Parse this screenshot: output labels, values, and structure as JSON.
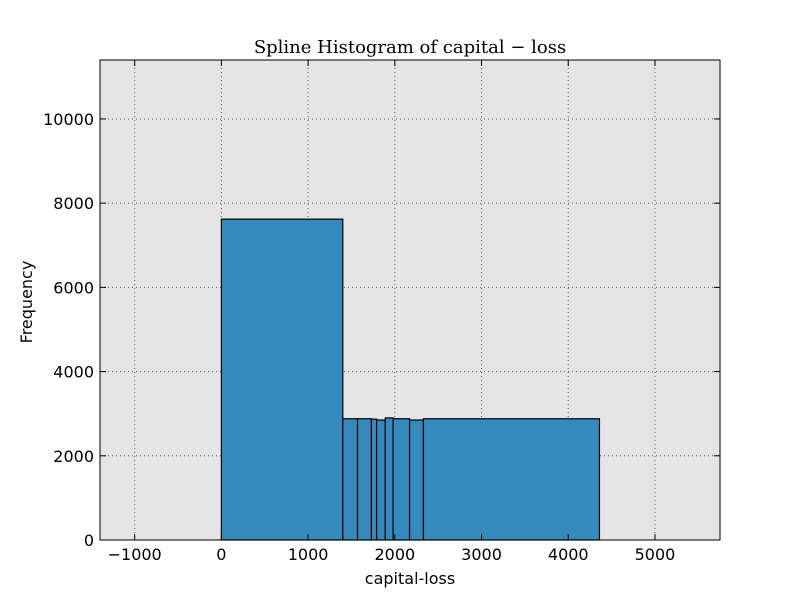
{
  "chart_data": {
    "type": "bar",
    "title": "Spline Histogram of capital − loss",
    "xlabel": "capital-loss",
    "ylabel": "Frequency",
    "xlim": [
      -1400,
      5750
    ],
    "ylim": [
      0,
      11400
    ],
    "xticks": [
      -1000,
      0,
      1000,
      2000,
      3000,
      4000,
      5000
    ],
    "yticks": [
      0,
      2000,
      4000,
      6000,
      8000,
      10000
    ],
    "xtick_labels": [
      "−1000",
      "0",
      "1000",
      "2000",
      "3000",
      "4000",
      "5000"
    ],
    "ytick_labels": [
      "0",
      "2000",
      "4000",
      "6000",
      "8000",
      "10000"
    ],
    "grid": true,
    "bar_color": "#348abd",
    "background_color": "#e5e5e5",
    "bins": [
      {
        "x0": 0,
        "x1": 1400,
        "value": 7620
      },
      {
        "x0": 1400,
        "x1": 1570,
        "value": 2880
      },
      {
        "x0": 1570,
        "x1": 1730,
        "value": 2880
      },
      {
        "x0": 1730,
        "x1": 1790,
        "value": 2870
      },
      {
        "x0": 1790,
        "x1": 1890,
        "value": 2850
      },
      {
        "x0": 1890,
        "x1": 1980,
        "value": 2900
      },
      {
        "x0": 1980,
        "x1": 2170,
        "value": 2880
      },
      {
        "x0": 2170,
        "x1": 2330,
        "value": 2850
      },
      {
        "x0": 2330,
        "x1": 4360,
        "value": 2880
      }
    ]
  }
}
